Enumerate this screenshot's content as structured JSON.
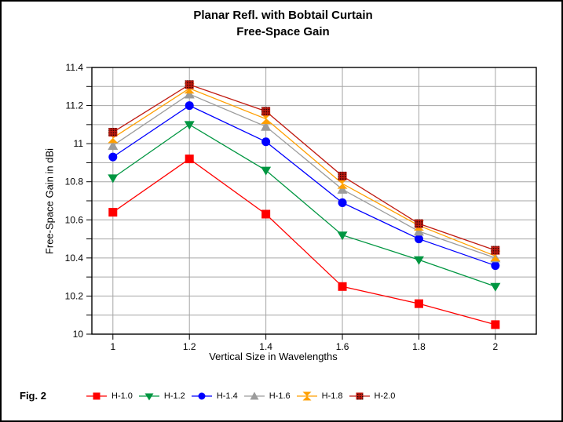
{
  "figure_label": "Fig. 2",
  "chart_data": {
    "type": "line",
    "title_lines": [
      "Planar Refl. with Bobtail Curtain",
      "Free-Space Gain"
    ],
    "xlabel": "Vertical Size in Wavelengths",
    "ylabel": "Free-Space Gain in dBi",
    "x": [
      1,
      1.2,
      1.4,
      1.6,
      1.8,
      2
    ],
    "x_tick_labels": [
      "1",
      "1.2",
      "1.4",
      "1.6",
      "1.8",
      "2"
    ],
    "y_tick_labels": [
      "10",
      "10.2",
      "10.4",
      "10.6",
      "10.8",
      "11",
      "11.2",
      "11.4"
    ],
    "xlim": [
      0.945,
      2.107
    ],
    "ylim": [
      10,
      11.4
    ],
    "y_minor_step": 0.1,
    "grid": true,
    "legend_position": "bottom",
    "series": [
      {
        "name": "H-1.0",
        "color": "#ff0000",
        "marker": "square",
        "values": [
          10.64,
          10.92,
          10.63,
          10.25,
          10.16,
          10.05
        ]
      },
      {
        "name": "H-1.2",
        "color": "#009641",
        "marker": "triangle-down",
        "values": [
          10.82,
          11.1,
          10.86,
          10.52,
          10.39,
          10.25
        ]
      },
      {
        "name": "H-1.4",
        "color": "#0000ff",
        "marker": "circle",
        "values": [
          10.93,
          11.2,
          11.01,
          10.69,
          10.5,
          10.36
        ]
      },
      {
        "name": "H-1.6",
        "color": "#9c9c9c",
        "marker": "triangle-up",
        "values": [
          10.99,
          11.26,
          11.09,
          10.76,
          10.54,
          10.4
        ]
      },
      {
        "name": "H-1.8",
        "color": "#ff9f00",
        "marker": "bowtie",
        "values": [
          11.03,
          11.29,
          11.13,
          10.79,
          10.57,
          10.41
        ]
      },
      {
        "name": "H-2.0",
        "color": "#c01a10",
        "marker": "square-dotted",
        "values": [
          11.06,
          11.31,
          11.17,
          10.83,
          10.58,
          10.44
        ]
      }
    ],
    "colors": {
      "grid": "#a6a6a6",
      "axis": "#000000",
      "background": "#ffffff"
    }
  }
}
